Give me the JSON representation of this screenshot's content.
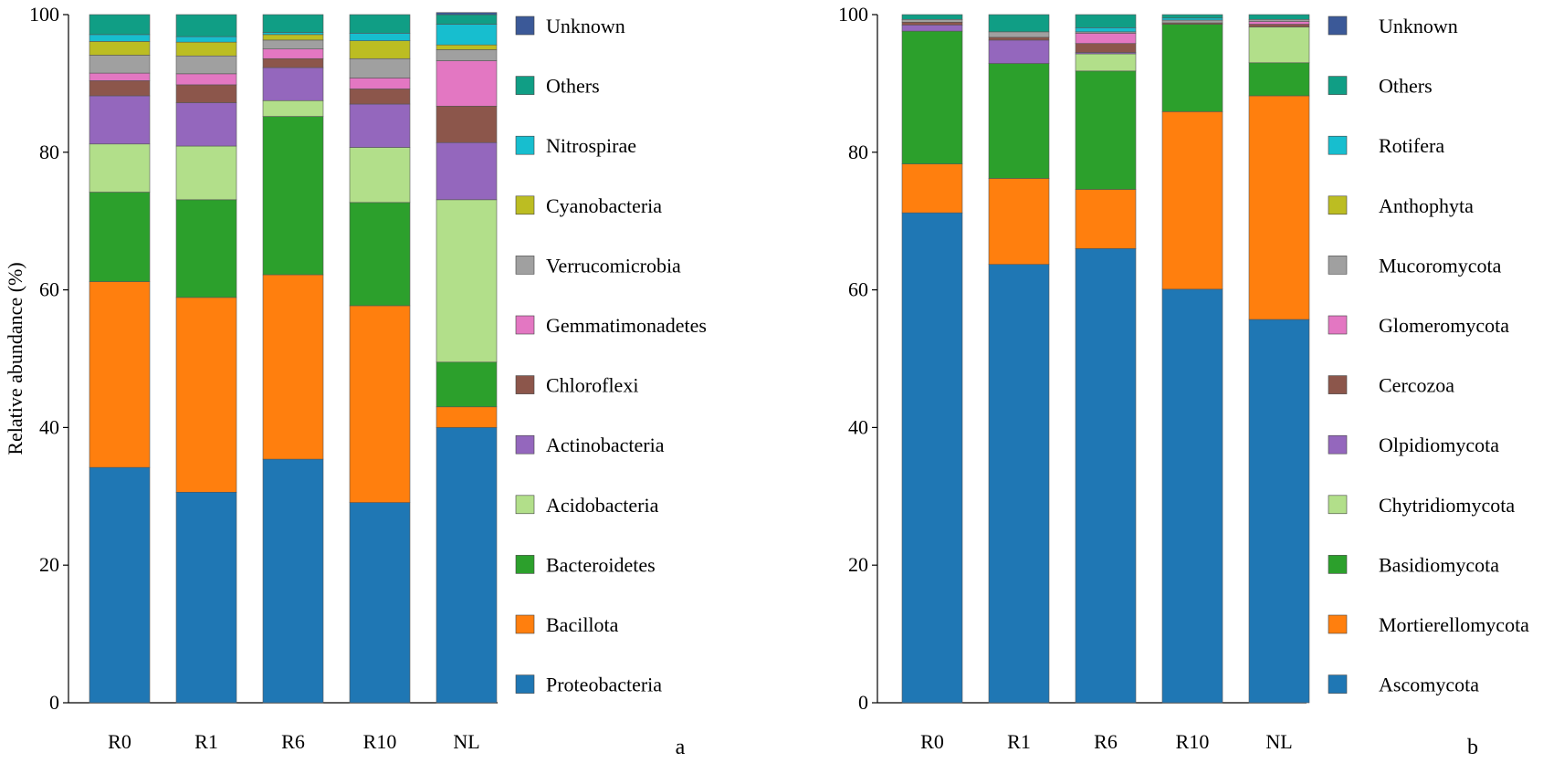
{
  "chart_data": [
    {
      "type": "bar",
      "stacked": true,
      "panel_label": "a",
      "ylabel": "Relative abundance (%)",
      "ylim": [
        0,
        100
      ],
      "yticks": [
        0,
        20,
        40,
        60,
        80,
        100
      ],
      "categories": [
        "R0",
        "R1",
        "R6",
        "R10",
        "NL"
      ],
      "series": [
        {
          "name": "Proteobacteria",
          "color": "#1f77b4",
          "values": [
            34.2,
            30.6,
            35.4,
            29.1,
            40.0
          ]
        },
        {
          "name": "Bacillota",
          "color": "#ff7f0e",
          "values": [
            27.0,
            28.3,
            26.8,
            28.6,
            3.0
          ]
        },
        {
          "name": "Bacteroidetes",
          "color": "#2ca02c",
          "values": [
            13.0,
            14.2,
            23.0,
            15.0,
            6.5
          ]
        },
        {
          "name": "Acidobacteria",
          "color": "#b2df8a",
          "values": [
            7.0,
            7.8,
            2.3,
            8.0,
            23.6
          ]
        },
        {
          "name": "Actinobacteria",
          "color": "#9467bd",
          "values": [
            7.0,
            6.3,
            4.8,
            6.3,
            8.3
          ]
        },
        {
          "name": "Chloroflexi",
          "color": "#8c564b",
          "values": [
            2.2,
            2.6,
            1.3,
            2.2,
            5.3
          ]
        },
        {
          "name": "Gemmatimonadetes",
          "color": "#e377c2",
          "values": [
            1.1,
            1.6,
            1.4,
            1.6,
            6.6
          ]
        },
        {
          "name": "Verrucomicrobia",
          "color": "#a0a0a0",
          "values": [
            2.6,
            2.6,
            1.3,
            2.8,
            1.6
          ]
        },
        {
          "name": "Cyanobacteria",
          "color": "#bcbd22",
          "values": [
            2.0,
            2.0,
            0.8,
            2.6,
            0.7
          ]
        },
        {
          "name": "Nitrospirae",
          "color": "#17becf",
          "values": [
            1.0,
            0.8,
            0.3,
            1.1,
            3.0
          ]
        },
        {
          "name": "Others",
          "color": "#109e85",
          "values": [
            2.9,
            3.2,
            2.6,
            2.7,
            1.4
          ]
        },
        {
          "name": "Unknown",
          "color": "#3b5998",
          "values": [
            0.0,
            0.0,
            0.0,
            0.0,
            0.3
          ]
        }
      ]
    },
    {
      "type": "bar",
      "stacked": true,
      "panel_label": "b",
      "ylabel": "",
      "ylim": [
        0,
        100
      ],
      "yticks": [
        0,
        20,
        40,
        60,
        80,
        100
      ],
      "categories": [
        "R0",
        "R1",
        "R6",
        "R10",
        "NL"
      ],
      "series": [
        {
          "name": "Ascomycota",
          "color": "#1f77b4",
          "values": [
            71.2,
            63.7,
            66.0,
            60.1,
            55.7
          ]
        },
        {
          "name": "Mortierellomycota",
          "color": "#ff7f0e",
          "values": [
            7.1,
            12.5,
            8.6,
            25.8,
            32.5
          ]
        },
        {
          "name": "Basidiomycota",
          "color": "#2ca02c",
          "values": [
            19.3,
            16.7,
            17.2,
            12.7,
            4.8
          ]
        },
        {
          "name": "Chytridiomycota",
          "color": "#b2df8a",
          "values": [
            0.0,
            0.0,
            2.5,
            0.0,
            5.2
          ]
        },
        {
          "name": "Olpidiomycota",
          "color": "#9467bd",
          "values": [
            0.9,
            3.4,
            0.2,
            0.0,
            0.0
          ]
        },
        {
          "name": "Cercozoa",
          "color": "#8c564b",
          "values": [
            0.4,
            0.4,
            1.3,
            0.2,
            0.4
          ]
        },
        {
          "name": "Glomeromycota",
          "color": "#e377c2",
          "values": [
            0.0,
            0.0,
            1.5,
            0.0,
            0.4
          ]
        },
        {
          "name": "Mucoromycota",
          "color": "#a0a0a0",
          "values": [
            0.4,
            0.8,
            0.2,
            0.4,
            0.3
          ]
        },
        {
          "name": "Anthophyta",
          "color": "#bcbd22",
          "values": [
            0.0,
            0.0,
            0.0,
            0.0,
            0.0
          ]
        },
        {
          "name": "Rotifera",
          "color": "#17becf",
          "values": [
            0.0,
            0.0,
            0.6,
            0.3,
            0.0
          ]
        },
        {
          "name": "Others",
          "color": "#109e85",
          "values": [
            0.7,
            2.5,
            1.9,
            0.5,
            0.7
          ]
        },
        {
          "name": "Unknown",
          "color": "#3b5998",
          "values": [
            0.0,
            0.0,
            0.0,
            0.0,
            0.0
          ]
        }
      ]
    }
  ]
}
